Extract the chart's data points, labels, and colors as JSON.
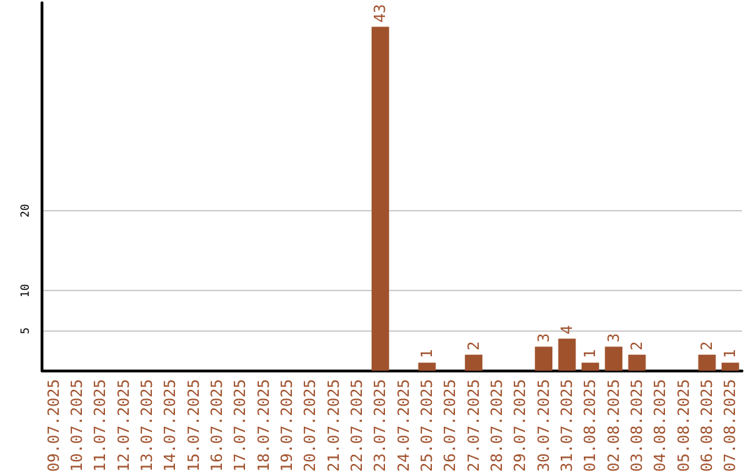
{
  "chart_data": {
    "type": "bar",
    "categories": [
      "09.07.2025",
      "10.07.2025",
      "11.07.2025",
      "12.07.2025",
      "13.07.2025",
      "14.07.2025",
      "15.07.2025",
      "16.07.2025",
      "17.07.2025",
      "18.07.2025",
      "19.07.2025",
      "20.07.2025",
      "21.07.2025",
      "22.07.2025",
      "23.07.2025",
      "24.07.2025",
      "25.07.2025",
      "26.07.2025",
      "27.07.2025",
      "28.07.2025",
      "29.07.2025",
      "30.07.2025",
      "31.07.2025",
      "01.08.2025",
      "02.08.2025",
      "03.08.2025",
      "04.08.2025",
      "05.08.2025",
      "06.08.2025",
      "07.08.2025"
    ],
    "values": [
      0,
      0,
      0,
      0,
      0,
      0,
      0,
      0,
      0,
      0,
      0,
      0,
      0,
      0,
      43,
      0,
      1,
      0,
      2,
      0,
      0,
      3,
      4,
      1,
      3,
      2,
      0,
      0,
      2,
      1
    ],
    "value_labels": [
      null,
      null,
      null,
      null,
      null,
      null,
      null,
      null,
      null,
      null,
      null,
      null,
      null,
      null,
      "43",
      null,
      "1",
      null,
      "2",
      null,
      null,
      "3",
      "4",
      "1",
      "3",
      "2",
      null,
      null,
      "2",
      "1"
    ],
    "color": "#a0522d",
    "ylim": [
      0,
      46
    ],
    "yticks": [
      5,
      10,
      20
    ],
    "grid": "y"
  }
}
